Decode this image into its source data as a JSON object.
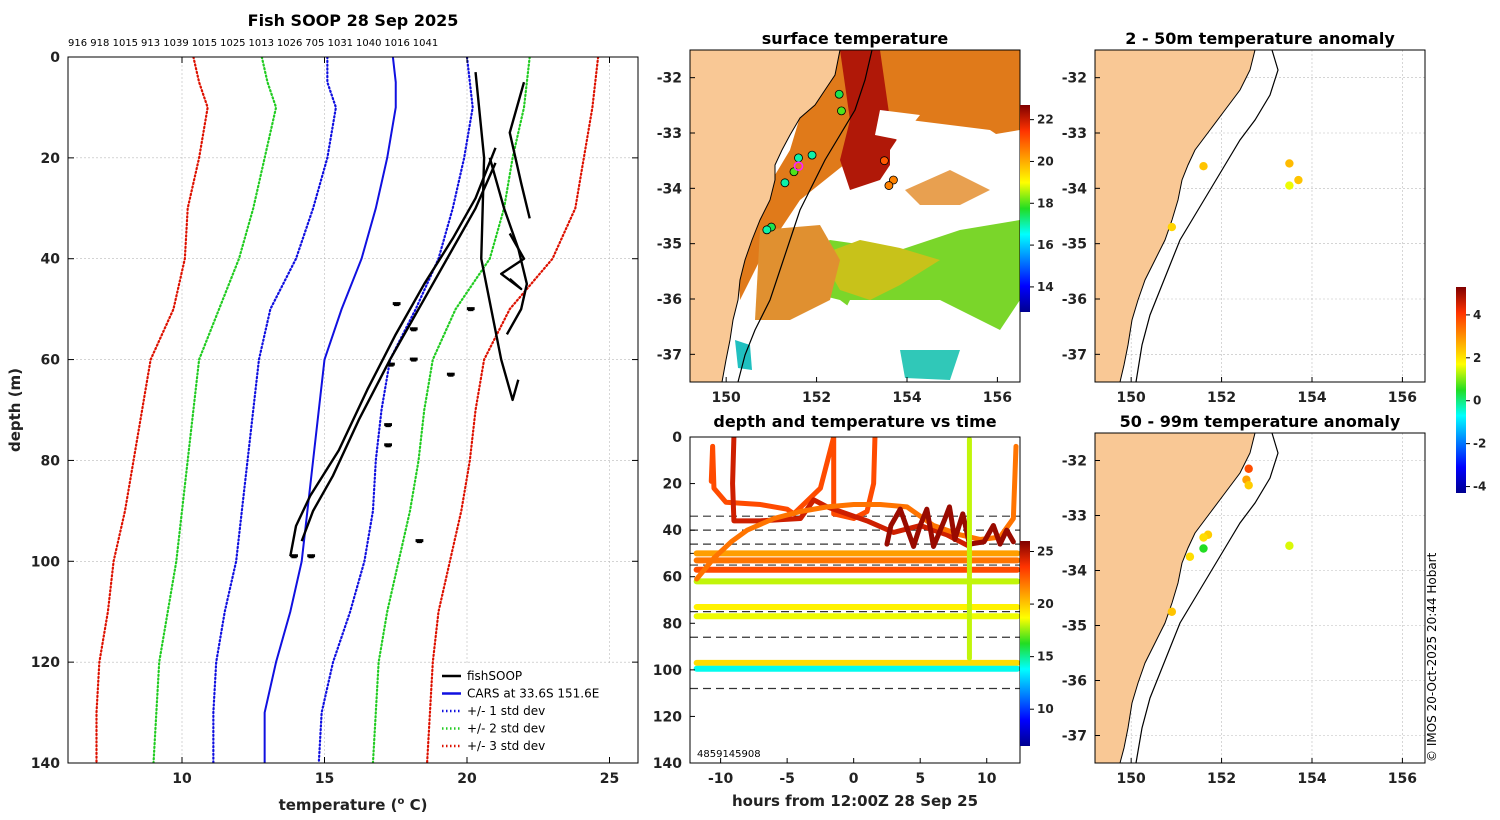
{
  "colors": {
    "land": "#f9c895",
    "profile": "#000000",
    "cars": "#1010e0",
    "std1": "#1010e0",
    "std2": "#22cc22",
    "std3": "#dd1100"
  },
  "icons": [
    "legend-line-glyph"
  ],
  "chart_data": [
    {
      "id": "profile",
      "type": "line",
      "title": "Fish SOOP 28 Sep 2025",
      "xlabel": "temperature (o C)",
      "xlabel_base": "temperature (",
      "xlabel_sup": "o",
      "xlabel_end": " C)",
      "ylabel": "depth (m)",
      "xlim": [
        6,
        26
      ],
      "ylim": [
        140,
        0
      ],
      "xticks": [
        10,
        15,
        20,
        25
      ],
      "yticks": [
        0,
        20,
        40,
        60,
        80,
        100,
        120,
        140
      ],
      "top_labels": [
        "916",
        "918",
        "1015",
        "913",
        "1039",
        "1015",
        "1025",
        "1013",
        "1026",
        "705",
        "1031",
        "1040",
        "1016",
        "1041"
      ],
      "depth": [
        0,
        5,
        10,
        20,
        30,
        40,
        50,
        60,
        70,
        80,
        90,
        100,
        110,
        120,
        130,
        140
      ],
      "series": [
        {
          "name": "CARS at 33.6S 151.6E",
          "style": "solid",
          "color": "cars",
          "values": [
            17.4,
            17.5,
            17.5,
            17.2,
            16.8,
            16.3,
            15.6,
            15.0,
            14.8,
            14.6,
            14.4,
            14.2,
            13.8,
            13.3,
            12.9,
            12.9
          ]
        },
        {
          "name": "+/- 1 std dev",
          "style": "dotted",
          "color": "std1",
          "values": [
            20.0,
            20.1,
            20.2,
            19.9,
            19.5,
            19.0,
            18.2,
            17.3,
            17.0,
            16.8,
            16.7,
            16.4,
            15.9,
            15.3,
            14.9,
            14.8
          ]
        },
        {
          "name": "+/- 1 std dev lower",
          "style": "dotted",
          "color": "std1",
          "values": [
            15.1,
            15.1,
            15.4,
            15.1,
            14.6,
            14.0,
            13.1,
            12.7,
            12.5,
            12.3,
            12.1,
            11.9,
            11.5,
            11.2,
            11.1,
            11.1
          ]
        },
        {
          "name": "+/- 2 std dev",
          "style": "dotted",
          "color": "std2",
          "values": [
            22.2,
            22.1,
            22.0,
            21.6,
            21.3,
            20.8,
            19.6,
            18.8,
            18.5,
            18.3,
            18.0,
            17.6,
            17.2,
            16.9,
            16.8,
            16.7
          ]
        },
        {
          "name": "+/- 2 std dev lower",
          "style": "dotted",
          "color": "std2",
          "values": [
            12.8,
            13.0,
            13.3,
            12.9,
            12.5,
            12.0,
            11.3,
            10.6,
            10.4,
            10.2,
            10.0,
            9.8,
            9.5,
            9.2,
            9.1,
            9.0
          ]
        },
        {
          "name": "+/- 3 std dev",
          "style": "dotted",
          "color": "std3",
          "values": [
            24.6,
            24.5,
            24.4,
            24.1,
            23.8,
            23.0,
            21.5,
            20.6,
            20.3,
            20.1,
            19.8,
            19.4,
            19.0,
            18.8,
            18.7,
            18.6
          ]
        },
        {
          "name": "+/- 3 std dev lower",
          "style": "dotted",
          "color": "std3",
          "values": [
            10.4,
            10.6,
            10.9,
            10.6,
            10.2,
            10.1,
            9.7,
            8.9,
            8.6,
            8.3,
            8.0,
            7.6,
            7.4,
            7.1,
            7.0,
            7.0
          ]
        }
      ],
      "fish_profiles": [
        {
          "x": [
            13.8,
            14.0,
            14.5,
            15.5,
            16.5,
            17.5,
            18.5,
            19.5,
            20.3,
            21.0
          ],
          "y": [
            99,
            93,
            87,
            78,
            66,
            55,
            45,
            36,
            28,
            18
          ]
        },
        {
          "x": [
            14.2,
            14.6,
            15.3,
            16.2,
            17.3,
            18.5,
            19.5,
            20.3,
            21.0
          ],
          "y": [
            96,
            90,
            83,
            72,
            60,
            48,
            38,
            30,
            21
          ]
        },
        {
          "x": [
            20.3,
            20.6,
            20.5,
            21.2,
            21.6,
            21.8
          ],
          "y": [
            3,
            20,
            40,
            60,
            68,
            64
          ]
        },
        {
          "x": [
            20.8,
            21.3,
            21.8,
            22.1,
            21.9,
            21.4
          ],
          "y": [
            20,
            30,
            38,
            45,
            50,
            55
          ]
        },
        {
          "x": [
            21.5,
            22.0,
            21.2,
            21.9,
            21.5
          ],
          "y": [
            35,
            40,
            43,
            46,
            44
          ]
        },
        {
          "x": [
            22.0,
            21.5,
            21.9,
            22.2
          ],
          "y": [
            5,
            15,
            25,
            32
          ]
        }
      ],
      "fish_clusters": [
        [
          13.9,
          99
        ],
        [
          14.5,
          99
        ],
        [
          17.5,
          49
        ],
        [
          18.1,
          54
        ],
        [
          18.1,
          60
        ],
        [
          17.3,
          61
        ],
        [
          19.4,
          63
        ],
        [
          20.1,
          50
        ],
        [
          17.2,
          73
        ],
        [
          17.2,
          77
        ],
        [
          18.3,
          96
        ]
      ],
      "legend": {
        "position": "bottom-right",
        "entries": [
          {
            "label": "fishSOOP",
            "color": "profile",
            "style": "solid"
          },
          {
            "label": "CARS at 33.6S 151.6E",
            "color": "cars",
            "style": "solid"
          },
          {
            "label": "+/- 1 std dev",
            "color": "std1",
            "style": "dotted"
          },
          {
            "label": "+/- 2 std dev",
            "color": "std2",
            "style": "dotted"
          },
          {
            "label": "+/- 3 std dev",
            "color": "std3",
            "style": "dotted"
          }
        ]
      }
    },
    {
      "id": "sst",
      "type": "heatmap",
      "title": "surface temperature",
      "xlim": [
        149.2,
        156.5
      ],
      "ylim": [
        -37.5,
        -31.5
      ],
      "xticks": [
        "150",
        "152",
        "154",
        "156"
      ],
      "xtick_values": [
        150,
        152,
        154,
        156
      ],
      "yticks": [
        "-32",
        "-33",
        "-34",
        "-35",
        "-36",
        "-37"
      ],
      "ytick_values": [
        -32,
        -33,
        -34,
        -35,
        -36,
        -37
      ],
      "colorbar": {
        "range": [
          12.8,
          22.7
        ],
        "ticks": [
          "14",
          "16",
          "18",
          "20",
          "22"
        ],
        "tick_values": [
          14,
          16,
          18,
          20,
          22
        ]
      },
      "stations": [
        {
          "lon": 152.5,
          "lat": -32.3,
          "value": 17.5
        },
        {
          "lon": 152.55,
          "lat": -32.6,
          "value": 18
        },
        {
          "lon": 151.9,
          "lat": -33.4,
          "value": 17
        },
        {
          "lon": 151.6,
          "lat": -33.45,
          "value": 17
        },
        {
          "lon": 151.5,
          "lat": -33.7,
          "value": 18
        },
        {
          "lon": 151.3,
          "lat": -33.9,
          "value": 17
        },
        {
          "lon": 151.0,
          "lat": -34.7,
          "value": 17.5
        },
        {
          "lon": 150.9,
          "lat": -34.75,
          "value": 17
        },
        {
          "lon": 153.5,
          "lat": -33.5,
          "value": 21
        },
        {
          "lon": 153.7,
          "lat": -33.85,
          "value": 20.5
        },
        {
          "lon": 153.6,
          "lat": -33.95,
          "value": 20.5
        }
      ],
      "highlight": {
        "lon": 151.6,
        "lat": -33.6
      }
    },
    {
      "id": "depthtime",
      "type": "scatter",
      "title": "depth and temperature vs time",
      "xlabel": "hours from 12:00Z 28 Sep 25",
      "xlim": [
        -12.3,
        12.5
      ],
      "ylim": [
        140,
        0
      ],
      "xticks": [
        "-10",
        "-5",
        "0",
        "5",
        "10"
      ],
      "xtick_values": [
        -10,
        -5,
        0,
        5,
        10
      ],
      "yticks": [
        "0",
        "20",
        "40",
        "60",
        "80",
        "100",
        "120",
        "140"
      ],
      "ytick_values": [
        0,
        20,
        40,
        60,
        80,
        100,
        120,
        140
      ],
      "colorbar": {
        "range": [
          6.5,
          26
        ],
        "ticks": [
          "10",
          "15",
          "20",
          "25"
        ],
        "tick_values": [
          10,
          15,
          20,
          25
        ]
      },
      "dashed_depths": [
        34,
        40,
        46,
        50,
        55,
        75,
        86,
        108
      ],
      "bands": [
        {
          "depth": 50,
          "temp": 21,
          "x0": -11.8,
          "x1": 12.3
        },
        {
          "depth": 53,
          "temp": 22,
          "x0": -11.8,
          "x1": 12.3
        },
        {
          "depth": 57,
          "temp": 23,
          "x0": -11.8,
          "x1": 12.3
        },
        {
          "depth": 62,
          "temp": 18,
          "x0": -11.8,
          "x1": 12.3
        },
        {
          "depth": 73,
          "temp": 19,
          "x0": -11.8,
          "x1": 12.3
        },
        {
          "depth": 77,
          "temp": 18.5,
          "x0": -11.8,
          "x1": 12.3
        },
        {
          "depth": 97,
          "temp": 19.5,
          "x0": -11.8,
          "x1": 12.3
        },
        {
          "depth": 99.5,
          "temp": 14,
          "x0": -11.8,
          "x1": 12.3
        }
      ],
      "paths": [
        {
          "temp": 23,
          "points": [
            [
              -10.7,
              19
            ],
            [
              -10.6,
              4
            ],
            [
              -10.5,
              22
            ],
            [
              -9.6,
              28
            ],
            [
              -7.0,
              29
            ],
            [
              -5.0,
              31
            ],
            [
              -4.5,
              33
            ],
            [
              -2.5,
              22
            ],
            [
              -1.5,
              0
            ],
            [
              -1.5,
              33
            ],
            [
              0.0,
              35
            ],
            [
              1.0,
              32
            ],
            [
              1.5,
              20
            ],
            [
              1.6,
              0
            ]
          ]
        },
        {
          "temp": 24.5,
          "points": [
            [
              -9.0,
              0
            ],
            [
              -9.1,
              20
            ],
            [
              -9.0,
              36
            ],
            [
              -7.0,
              36
            ],
            [
              -4.0,
              35
            ],
            [
              -3.0,
              27
            ],
            [
              -2.0,
              30
            ],
            [
              1.0,
              36
            ],
            [
              3.0,
              41
            ],
            [
              5.0,
              38
            ],
            [
              7.0,
              42
            ],
            [
              8.7,
              47
            ]
          ]
        },
        {
          "temp": 22,
          "points": [
            [
              -11.8,
              61
            ],
            [
              -10.5,
              52
            ],
            [
              -9.2,
              45
            ],
            [
              -8.0,
              40
            ],
            [
              -6.0,
              35
            ],
            [
              -4.0,
              32
            ],
            [
              -2.0,
              30
            ],
            [
              0.0,
              29
            ],
            [
              2.0,
              29
            ],
            [
              4.0,
              30
            ],
            [
              6.0,
              38
            ],
            [
              8.0,
              42
            ],
            [
              9.5,
              44
            ],
            [
              11.0,
              43
            ],
            [
              12.0,
              35
            ],
            [
              12.2,
              4
            ]
          ]
        },
        {
          "temp": 25.5,
          "points": [
            [
              2.5,
              46
            ],
            [
              2.8,
              38
            ],
            [
              3.5,
              31
            ],
            [
              4.5,
              47
            ],
            [
              5.0,
              38
            ],
            [
              5.5,
              31
            ],
            [
              6.0,
              47
            ],
            [
              6.8,
              36
            ],
            [
              7.2,
              30
            ],
            [
              7.6,
              44
            ],
            [
              8.2,
              33
            ],
            [
              8.7,
              46
            ],
            [
              9.8,
              45
            ],
            [
              10.5,
              38
            ],
            [
              11.0,
              46
            ],
            [
              11.5,
              40
            ],
            [
              12.0,
              45
            ]
          ]
        },
        {
          "temp": 18,
          "points": [
            [
              8.7,
              1
            ],
            [
              8.7,
              95
            ]
          ]
        }
      ],
      "label": "4859145908"
    },
    {
      "id": "anom2to50",
      "type": "scatter",
      "title": "2 - 50m temperature anomaly",
      "xlim": [
        149.2,
        156.5
      ],
      "ylim": [
        -37.5,
        -31.5
      ],
      "xticks": [
        "150",
        "152",
        "154",
        "156"
      ],
      "xtick_values": [
        150,
        152,
        154,
        156
      ],
      "yticks": [
        "-32",
        "-33",
        "-34",
        "-35",
        "-36",
        "-37"
      ],
      "ytick_values": [
        -32,
        -33,
        -34,
        -35,
        -36,
        -37
      ],
      "points": [
        {
          "lon": 151.6,
          "lat": -33.6,
          "anom": 2.4
        },
        {
          "lon": 150.9,
          "lat": -34.7,
          "anom": 2.2
        },
        {
          "lon": 153.5,
          "lat": -33.55,
          "anom": 2.5
        },
        {
          "lon": 153.5,
          "lat": -33.95,
          "anom": 1.6
        },
        {
          "lon": 153.7,
          "lat": -33.85,
          "anom": 2.4
        }
      ]
    },
    {
      "id": "anom50to99",
      "type": "scatter",
      "title": "50 - 99m temperature anomaly",
      "xlim": [
        149.2,
        156.5
      ],
      "ylim": [
        -37.5,
        -31.5
      ],
      "xticks": [
        "150",
        "152",
        "154",
        "156"
      ],
      "xtick_values": [
        150,
        152,
        154,
        156
      ],
      "yticks": [
        "-32",
        "-33",
        "-34",
        "-35",
        "-36",
        "-37"
      ],
      "ytick_values": [
        -32,
        -33,
        -34,
        -35,
        -36,
        -37
      ],
      "points": [
        {
          "lon": 152.6,
          "lat": -32.15,
          "anom": 3.8
        },
        {
          "lon": 152.55,
          "lat": -32.35,
          "anom": 2.8
        },
        {
          "lon": 152.6,
          "lat": -32.45,
          "anom": 2.3
        },
        {
          "lon": 151.7,
          "lat": -33.35,
          "anom": 2.3
        },
        {
          "lon": 151.6,
          "lat": -33.4,
          "anom": 2.1
        },
        {
          "lon": 151.6,
          "lat": -33.6,
          "anom": 0.5
        },
        {
          "lon": 151.3,
          "lat": -33.75,
          "anom": 2.1
        },
        {
          "lon": 150.9,
          "lat": -34.75,
          "anom": 2.4
        },
        {
          "lon": 153.5,
          "lat": -33.55,
          "anom": 1.5
        }
      ]
    },
    {
      "id": "anom_colorbar",
      "type": "colorbar",
      "range": [
        -4.3,
        5.3
      ],
      "ticks": [
        "4",
        "2",
        "0",
        "-2",
        "-4"
      ],
      "tick_values": [
        4,
        2,
        0,
        -2,
        -4
      ]
    }
  ],
  "credit": "© IMOS 20-Oct-2025 20:44 Hobart"
}
